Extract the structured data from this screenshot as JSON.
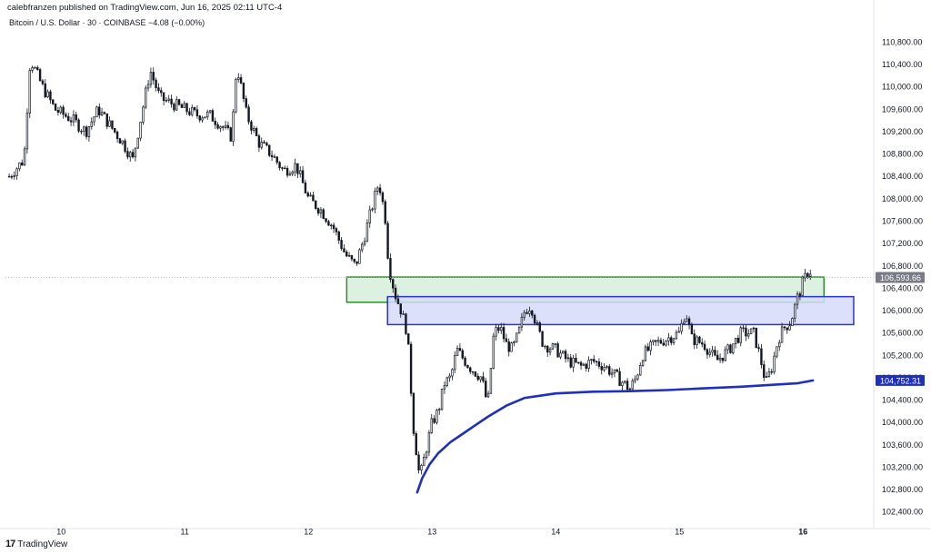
{
  "header": {
    "publisher": "calebfranzen published on TradingView.com, Jun 16, 2025 02:11 UTC-4",
    "symbol_line": "Bitcoin / U.S. Dollar · 30 · COINBASE  −4.08 (−0.00%)"
  },
  "footer": {
    "logo_glyph": "17",
    "brand": "TradingView"
  },
  "colors": {
    "candle": "#131722",
    "vwap": "#1f2fbf",
    "green_zone_fill": "#d7eedb",
    "green_zone_border": "#2e8b2e",
    "blue_zone_fill": "#d6dafa",
    "blue_zone_border": "#2b35c9",
    "price_label_bg": "#787b86",
    "vwap_label_bg": "#1f2fbf"
  },
  "chart_data": {
    "type": "candlestick",
    "interval": "30",
    "exchange": "COINBASE",
    "ylim": [
      102200,
      111100
    ],
    "xlim": [
      9.55,
      16.55
    ],
    "y_ticks": [
      102400,
      102800,
      103200,
      103600,
      104000,
      104400,
      104800,
      105200,
      105600,
      106000,
      106400,
      106800,
      107200,
      107600,
      108000,
      108400,
      108800,
      109200,
      109600,
      110000,
      110400,
      110800
    ],
    "y_tick_labels": [
      "102,400.00",
      "102,800.00",
      "103,200.00",
      "103,600.00",
      "104,000.00",
      "104,400.00",
      "104,800.00",
      "105,200.00",
      "105,600.00",
      "106,000.00",
      "106,400.00",
      "106,800.00",
      "107,200.00",
      "107,600.00",
      "108,000.00",
      "108,400.00",
      "108,800.00",
      "109,200.00",
      "109,600.00",
      "110,000.00",
      "110,400.00",
      "110,800.00"
    ],
    "x_ticks": [
      10,
      11,
      12,
      13,
      14,
      15,
      16
    ],
    "x_tick_labels": [
      "10",
      "11",
      "12",
      "13",
      "14",
      "15",
      "16"
    ],
    "last_price": 106593.66,
    "last_price_label": "106,593.66",
    "vwap_label": "104,752.31",
    "zones": [
      {
        "name": "green",
        "x_start": 12.31,
        "x_end": 16.17,
        "y_low": 106150,
        "y_high": 106600
      },
      {
        "name": "blue",
        "x_start": 12.64,
        "x_end": 16.41,
        "y_low": 105750,
        "y_high": 106250
      }
    ],
    "price_path": [
      [
        9.58,
        108400
      ],
      [
        9.7,
        108700
      ],
      [
        9.75,
        110500
      ],
      [
        9.85,
        110000
      ],
      [
        9.95,
        109600
      ],
      [
        10.1,
        109400
      ],
      [
        10.2,
        109200
      ],
      [
        10.3,
        109600
      ],
      [
        10.4,
        109300
      ],
      [
        10.5,
        109000
      ],
      [
        10.58,
        108700
      ],
      [
        10.65,
        109500
      ],
      [
        10.72,
        110300
      ],
      [
        10.8,
        109800
      ],
      [
        10.9,
        109700
      ],
      [
        11.0,
        109600
      ],
      [
        11.1,
        109500
      ],
      [
        11.2,
        109500
      ],
      [
        11.3,
        109300
      ],
      [
        11.38,
        109100
      ],
      [
        11.42,
        110400
      ],
      [
        11.5,
        109500
      ],
      [
        11.6,
        109000
      ],
      [
        11.7,
        108800
      ],
      [
        11.8,
        108500
      ],
      [
        11.9,
        108600
      ],
      [
        12.0,
        108000
      ],
      [
        12.1,
        107800
      ],
      [
        12.2,
        107500
      ],
      [
        12.3,
        107000
      ],
      [
        12.38,
        106800
      ],
      [
        12.45,
        107300
      ],
      [
        12.52,
        107900
      ],
      [
        12.57,
        108300
      ],
      [
        12.62,
        107700
      ],
      [
        12.65,
        106800
      ],
      [
        12.7,
        106300
      ],
      [
        12.75,
        106000
      ],
      [
        12.8,
        105600
      ],
      [
        12.85,
        103900
      ],
      [
        12.9,
        103000
      ],
      [
        12.95,
        103500
      ],
      [
        13.0,
        104000
      ],
      [
        13.05,
        104200
      ],
      [
        13.1,
        104700
      ],
      [
        13.15,
        104800
      ],
      [
        13.2,
        105300
      ],
      [
        13.3,
        105000
      ],
      [
        13.4,
        104800
      ],
      [
        13.45,
        104300
      ],
      [
        13.5,
        105600
      ],
      [
        13.55,
        105700
      ],
      [
        13.6,
        105400
      ],
      [
        13.65,
        105300
      ],
      [
        13.7,
        105600
      ],
      [
        13.75,
        106000
      ],
      [
        13.8,
        106100
      ],
      [
        13.85,
        105700
      ],
      [
        13.9,
        105400
      ],
      [
        14.0,
        105300
      ],
      [
        14.1,
        105100
      ],
      [
        14.2,
        105000
      ],
      [
        14.3,
        105100
      ],
      [
        14.4,
        105000
      ],
      [
        14.5,
        104800
      ],
      [
        14.6,
        104600
      ],
      [
        14.65,
        104800
      ],
      [
        14.7,
        105200
      ],
      [
        14.8,
        105400
      ],
      [
        14.9,
        105500
      ],
      [
        15.0,
        105600
      ],
      [
        15.05,
        106000
      ],
      [
        15.1,
        105500
      ],
      [
        15.2,
        105400
      ],
      [
        15.3,
        105100
      ],
      [
        15.4,
        105300
      ],
      [
        15.5,
        105600
      ],
      [
        15.6,
        105600
      ],
      [
        15.65,
        105200
      ],
      [
        15.7,
        104700
      ],
      [
        15.75,
        105000
      ],
      [
        15.8,
        105500
      ],
      [
        15.85,
        105700
      ],
      [
        15.9,
        105800
      ],
      [
        15.95,
        106200
      ],
      [
        16.0,
        106500
      ],
      [
        16.05,
        106750
      ],
      [
        16.08,
        106600
      ]
    ],
    "vwap_path": [
      [
        12.88,
        102750
      ],
      [
        12.92,
        103000
      ],
      [
        12.98,
        103250
      ],
      [
        13.05,
        103450
      ],
      [
        13.15,
        103650
      ],
      [
        13.25,
        103800
      ],
      [
        13.35,
        103950
      ],
      [
        13.45,
        104100
      ],
      [
        13.6,
        104300
      ],
      [
        13.75,
        104440
      ],
      [
        13.85,
        104470
      ],
      [
        14.0,
        104520
      ],
      [
        14.3,
        104550
      ],
      [
        14.6,
        104560
      ],
      [
        14.9,
        104580
      ],
      [
        15.2,
        104610
      ],
      [
        15.5,
        104640
      ],
      [
        15.8,
        104680
      ],
      [
        15.95,
        104700
      ],
      [
        16.08,
        104752
      ]
    ]
  }
}
